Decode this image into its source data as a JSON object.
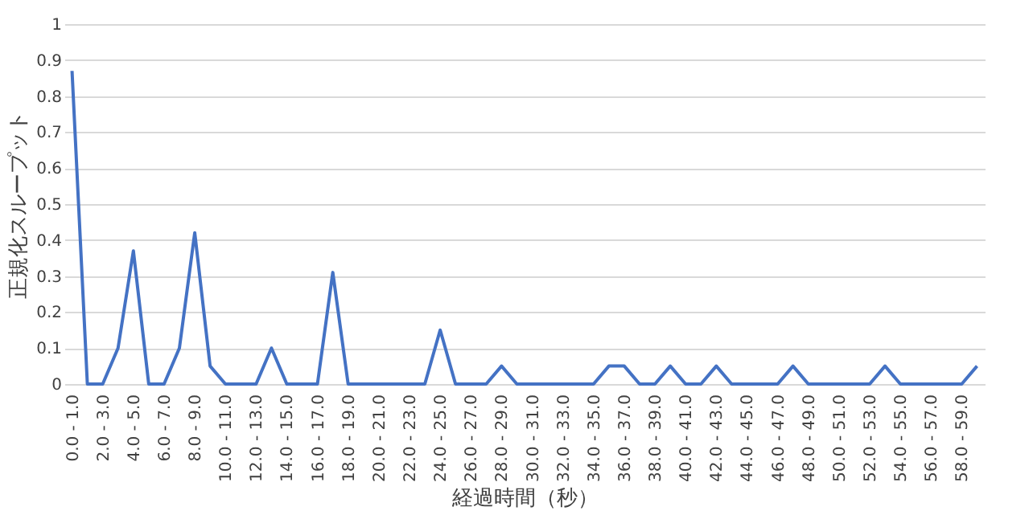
{
  "chart_data": {
    "type": "line",
    "xlabel": "経過時間（秒）",
    "ylabel": "正規化スループット",
    "categories": [
      "0.0 - 1.0",
      null,
      "2.0 - 3.0",
      null,
      "4.0 - 5.0",
      null,
      "6.0 - 7.0",
      null,
      "8.0 - 9.0",
      null,
      "10.0 - 11.0",
      null,
      "12.0 - 13.0",
      null,
      "14.0 - 15.0",
      null,
      "16.0 - 17.0",
      null,
      "18.0 - 19.0",
      null,
      "20.0 - 21.0",
      null,
      "22.0 - 23.0",
      null,
      "24.0 - 25.0",
      null,
      "26.0 - 27.0",
      null,
      "28.0 - 29.0",
      null,
      "30.0 - 31.0",
      null,
      "32.0 - 33.0",
      null,
      "34.0 - 35.0",
      null,
      "36.0 - 37.0",
      null,
      "38.0 - 39.0",
      null,
      "40.0 - 41.0",
      null,
      "42.0 - 43.0",
      null,
      "44.0 - 45.0",
      null,
      "46.0 - 47.0",
      null,
      "48.0 - 49.0",
      null,
      "50.0 - 51.0",
      null,
      "52.0 - 53.0",
      null,
      "54.0 - 55.0",
      null,
      "56.0 - 57.0",
      null,
      "58.0 - 59.0",
      null
    ],
    "series": [
      {
        "color": "#4472c4",
        "values": [
          0.87,
          0,
          0,
          0.1,
          0.37,
          0,
          0,
          0.1,
          0.42,
          0.05,
          0,
          0,
          0,
          0.1,
          0,
          0,
          0,
          0.31,
          0,
          0,
          0,
          0,
          0,
          0,
          0.15,
          0,
          0,
          0,
          0.05,
          0,
          0,
          0,
          0,
          0,
          0,
          0.05,
          0.05,
          0,
          0,
          0.05,
          0,
          0,
          0.05,
          0,
          0,
          0,
          0,
          0.05,
          0,
          0,
          0,
          0,
          0,
          0.05,
          0,
          0,
          0,
          0,
          0,
          0.05
        ]
      }
    ],
    "ylim": [
      0,
      1
    ],
    "yticks": [
      0,
      0.1,
      0.2,
      0.3,
      0.4,
      0.5,
      0.6,
      0.7,
      0.8,
      0.9,
      1
    ],
    "grid": "y",
    "marker": "none",
    "line_style": "solid",
    "legend": false
  }
}
